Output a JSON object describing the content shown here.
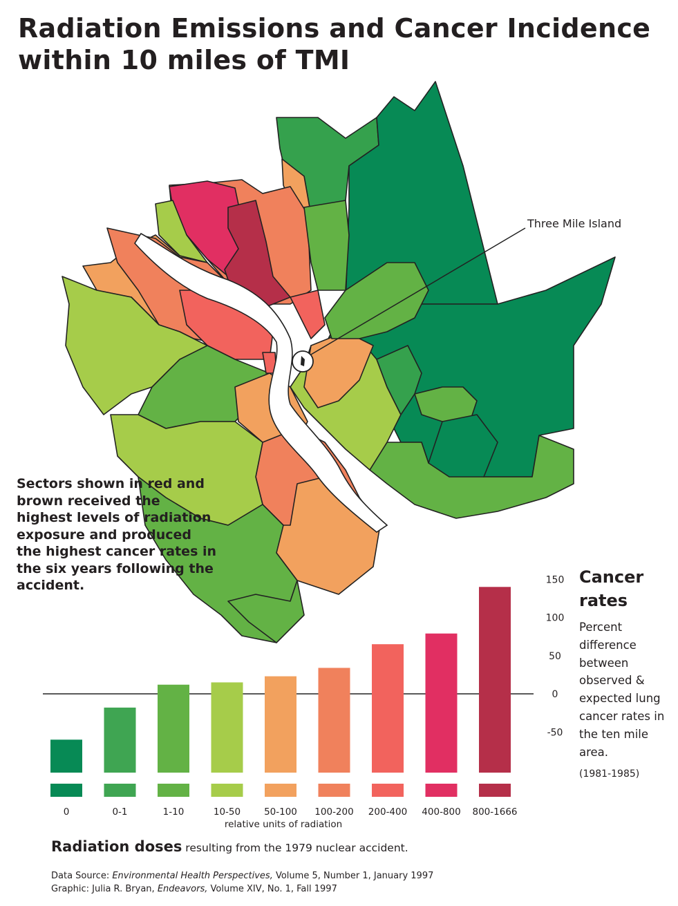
{
  "title": {
    "line1": "Radiation Emissions and Cancer Incidence",
    "line2": "within 10 miles  of TMI"
  },
  "map": {
    "callout": "Three Mile Island",
    "note": "Sectors shown in red and brown received the highest levels of radiation exposure and produced the highest cancer rates in the six years following the accident."
  },
  "legend": {
    "title": "Cancer rates",
    "description": "Percent difference between observed & expected lung cancer rates in the ten mile area.",
    "period": "(1981-1985)"
  },
  "footer": {
    "doses_bold": "Radiation doses",
    "doses_rest": " resulting from the 1979 nuclear accident.",
    "source_prefix": "Data Source: ",
    "source_journal": "Environmental Health Perspectives,",
    "source_rest": " Volume 5, Number 1, January 1997",
    "graphic_prefix": "Graphic:  Julia R. Bryan, ",
    "graphic_pub": "Endeavors,",
    "graphic_rest": " Volume XIV, No. 1, Fall 1997"
  },
  "chart_data": {
    "type": "bar",
    "xlabel": "relative units of radiation",
    "ylabel": "",
    "ylim": [
      -90,
      150
    ],
    "yticks": [
      150,
      100,
      50,
      0,
      -50
    ],
    "categories": [
      "0",
      "0-1",
      "1-10",
      "10-50",
      "50-100",
      "100-200",
      "200-400",
      "400-800",
      "800-1666"
    ],
    "values": [
      -60,
      -18,
      12,
      15,
      23,
      34,
      65,
      79,
      140
    ],
    "colors": [
      "#078a55",
      "#3fa552",
      "#63b245",
      "#a6cc4a",
      "#f2a15e",
      "#f0815c",
      "#f2635d",
      "#e12f62",
      "#b52f49"
    ]
  }
}
